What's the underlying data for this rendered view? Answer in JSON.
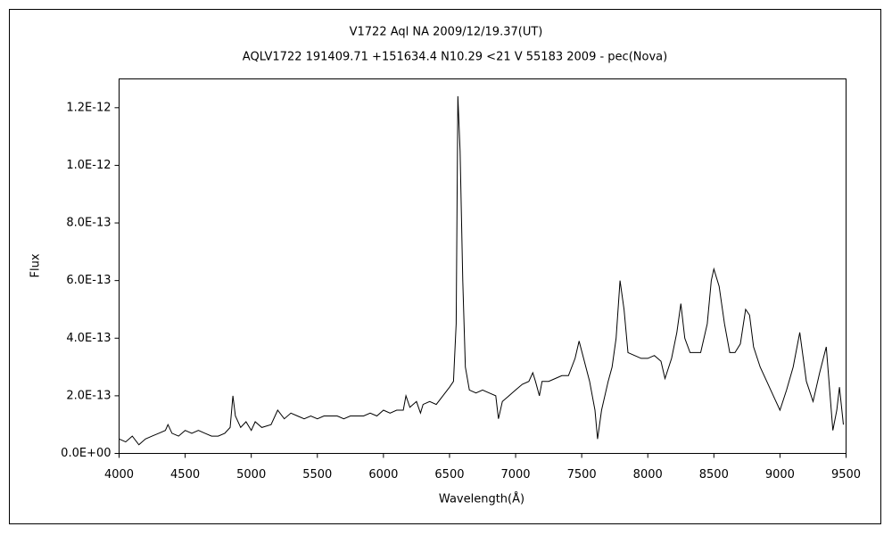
{
  "chart_data": {
    "type": "line",
    "title": "V1722 Aql    NA    2009/12/19.37(UT)",
    "subtitle": "AQLV1722 191409.71 +151634.4 N10.29 <21 V 55183 2009 - pec(Nova)",
    "xlabel": "Wavelength(Å)",
    "ylabel": "Flux",
    "color": "#000000",
    "x": [
      4000,
      4050,
      4100,
      4150,
      4200,
      4250,
      4300,
      4350,
      4370,
      4400,
      4450,
      4500,
      4550,
      4600,
      4650,
      4700,
      4750,
      4800,
      4840,
      4861,
      4880,
      4920,
      4960,
      5000,
      5030,
      5080,
      5150,
      5200,
      5250,
      5300,
      5350,
      5400,
      5450,
      5500,
      5550,
      5600,
      5650,
      5700,
      5750,
      5800,
      5850,
      5900,
      5950,
      6000,
      6050,
      6100,
      6150,
      6170,
      6200,
      6250,
      6280,
      6300,
      6350,
      6400,
      6450,
      6500,
      6530,
      6550,
      6563,
      6580,
      6600,
      6620,
      6650,
      6700,
      6750,
      6800,
      6850,
      6870,
      6900,
      6950,
      7000,
      7050,
      7100,
      7130,
      7150,
      7180,
      7200,
      7250,
      7300,
      7350,
      7400,
      7450,
      7480,
      7520,
      7560,
      7600,
      7620,
      7650,
      7700,
      7730,
      7760,
      7790,
      7820,
      7850,
      7900,
      7950,
      8000,
      8050,
      8100,
      8130,
      8180,
      8220,
      8250,
      8280,
      8320,
      8350,
      8400,
      8450,
      8480,
      8500,
      8540,
      8580,
      8620,
      8660,
      8700,
      8740,
      8770,
      8800,
      8850,
      8900,
      8950,
      9000,
      9050,
      9100,
      9150,
      9200,
      9250,
      9300,
      9350,
      9400,
      9430,
      9450,
      9480
    ],
    "values": [
      5e-14,
      4e-14,
      6e-14,
      3e-14,
      5e-14,
      6e-14,
      7e-14,
      8e-14,
      1e-13,
      7e-14,
      6e-14,
      8e-14,
      7e-14,
      8e-14,
      7e-14,
      6e-14,
      6e-14,
      7e-14,
      9e-14,
      2e-13,
      1.3e-13,
      9e-14,
      1.1e-13,
      8e-14,
      1.1e-13,
      9e-14,
      1e-13,
      1.5e-13,
      1.2e-13,
      1.4e-13,
      1.3e-13,
      1.2e-13,
      1.3e-13,
      1.2e-13,
      1.3e-13,
      1.3e-13,
      1.3e-13,
      1.2e-13,
      1.3e-13,
      1.3e-13,
      1.3e-13,
      1.4e-13,
      1.3e-13,
      1.5e-13,
      1.4e-13,
      1.5e-13,
      1.5e-13,
      2e-13,
      1.6e-13,
      1.8e-13,
      1.4e-13,
      1.7e-13,
      1.8e-13,
      1.7e-13,
      2e-13,
      2.3e-13,
      2.5e-13,
      4.5e-13,
      1.24e-12,
      1.05e-12,
      6e-13,
      3e-13,
      2.2e-13,
      2.1e-13,
      2.2e-13,
      2.1e-13,
      2e-13,
      1.2e-13,
      1.8e-13,
      2e-13,
      2.2e-13,
      2.4e-13,
      2.5e-13,
      2.8e-13,
      2.5e-13,
      2e-13,
      2.5e-13,
      2.5e-13,
      2.6e-13,
      2.7e-13,
      2.7e-13,
      3.3e-13,
      3.9e-13,
      3.2e-13,
      2.5e-13,
      1.5e-13,
      5e-14,
      1.5e-13,
      2.5e-13,
      3e-13,
      4e-13,
      6e-13,
      5e-13,
      3.5e-13,
      3.4e-13,
      3.3e-13,
      3.3e-13,
      3.4e-13,
      3.2e-13,
      2.6e-13,
      3.3e-13,
      4.2e-13,
      5.2e-13,
      4e-13,
      3.5e-13,
      3.5e-13,
      3.5e-13,
      4.5e-13,
      6e-13,
      6.4e-13,
      5.8e-13,
      4.5e-13,
      3.5e-13,
      3.5e-13,
      3.8e-13,
      5e-13,
      4.8e-13,
      3.7e-13,
      3e-13,
      2.5e-13,
      2e-13,
      1.5e-13,
      2.2e-13,
      3e-13,
      4.2e-13,
      2.5e-13,
      1.8e-13,
      2.8e-13,
      3.7e-13,
      8e-14,
      1.5e-13,
      2.3e-13,
      1e-13
    ],
    "xlim": [
      4000,
      9500
    ],
    "xticks": [
      4000,
      4500,
      5000,
      5500,
      6000,
      6500,
      7000,
      7500,
      8000,
      8500,
      9000,
      9500
    ],
    "ylim": [
      0,
      1.3e-12
    ],
    "yticks": [
      {
        "value": 0,
        "label": "0.0E+00"
      },
      {
        "value": 2e-13,
        "label": "2.0E-13"
      },
      {
        "value": 4e-13,
        "label": "4.0E-13"
      },
      {
        "value": 6e-13,
        "label": "6.0E-13"
      },
      {
        "value": 8e-13,
        "label": "8.0E-13"
      },
      {
        "value": 1e-12,
        "label": "1.0E-12"
      },
      {
        "value": 1.2e-12,
        "label": "1.2E-12"
      }
    ]
  }
}
